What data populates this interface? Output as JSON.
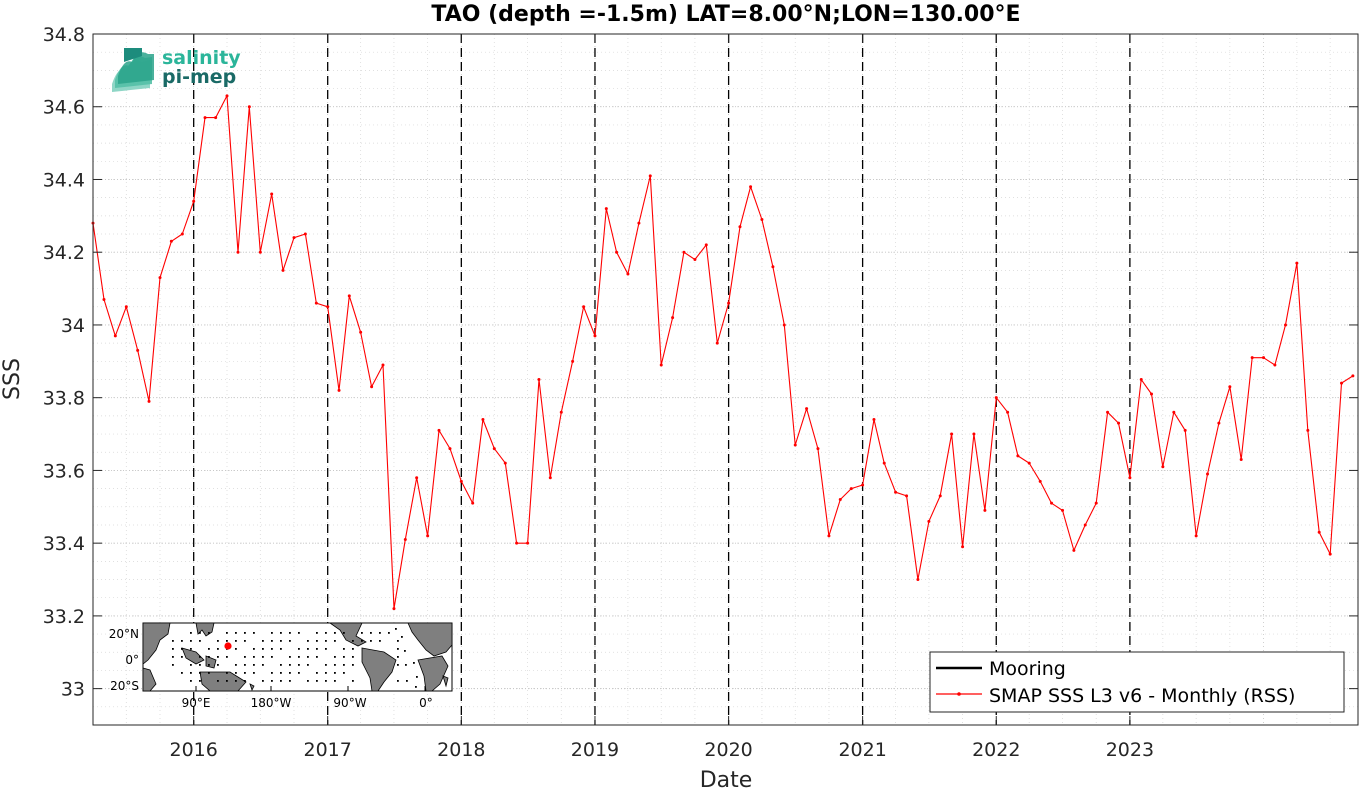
{
  "chart_data": {
    "type": "line",
    "title": "TAO (depth =-1.5m) LAT=8.00°N;LON=130.00°E",
    "xlabel": "Date",
    "ylabel": "SSS",
    "xlim": [
      "2015-04-01",
      "2024-09-15"
    ],
    "ylim": [
      32.9,
      34.8
    ],
    "y_ticks": [
      "33",
      "33.2",
      "33.4",
      "33.6",
      "33.8",
      "34",
      "34.2",
      "34.4",
      "34.6",
      "34.8"
    ],
    "x_ticks": [
      "2016",
      "2017",
      "2018",
      "2019",
      "2020",
      "2021",
      "2022",
      "2023"
    ],
    "grid": true,
    "year_boundary_lines": [
      "2016-01-01",
      "2017-01-01",
      "2018-01-01",
      "2019-01-01",
      "2020-01-01",
      "2021-01-01",
      "2022-01-01",
      "2023-01-01"
    ],
    "legend_placement": "bottom-right",
    "series": [
      {
        "name": "Mooring",
        "color": "#000000",
        "values": []
      },
      {
        "name": "SMAP SSS L3 v6 - Monthly (RSS)",
        "color": "#ff0000",
        "points": [
          [
            "2015-04-01",
            34.28
          ],
          [
            "2015-05-01",
            34.07
          ],
          [
            "2015-06-01",
            33.97
          ],
          [
            "2015-07-01",
            34.05
          ],
          [
            "2015-08-01",
            33.93
          ],
          [
            "2015-09-01",
            33.79
          ],
          [
            "2015-10-01",
            34.13
          ],
          [
            "2015-11-01",
            34.23
          ],
          [
            "2015-12-01",
            34.25
          ],
          [
            "2016-01-01",
            34.34
          ],
          [
            "2016-02-01",
            34.57
          ],
          [
            "2016-03-01",
            34.57
          ],
          [
            "2016-04-01",
            34.63
          ],
          [
            "2016-05-01",
            34.2
          ],
          [
            "2016-06-01",
            34.6
          ],
          [
            "2016-07-01",
            34.2
          ],
          [
            "2016-08-01",
            34.36
          ],
          [
            "2016-09-01",
            34.15
          ],
          [
            "2016-10-01",
            34.24
          ],
          [
            "2016-11-01",
            34.25
          ],
          [
            "2016-12-01",
            34.06
          ],
          [
            "2017-01-01",
            34.05
          ],
          [
            "2017-02-01",
            33.82
          ],
          [
            "2017-03-01",
            34.08
          ],
          [
            "2017-04-01",
            33.98
          ],
          [
            "2017-05-01",
            33.83
          ],
          [
            "2017-06-01",
            33.89
          ],
          [
            "2017-07-01",
            33.22
          ],
          [
            "2017-08-01",
            33.41
          ],
          [
            "2017-09-01",
            33.58
          ],
          [
            "2017-10-01",
            33.42
          ],
          [
            "2017-11-01",
            33.71
          ],
          [
            "2017-12-01",
            33.66
          ],
          [
            "2018-01-01",
            33.57
          ],
          [
            "2018-02-01",
            33.51
          ],
          [
            "2018-03-01",
            33.74
          ],
          [
            "2018-04-01",
            33.66
          ],
          [
            "2018-05-01",
            33.62
          ],
          [
            "2018-06-01",
            33.4
          ],
          [
            "2018-07-01",
            33.4
          ],
          [
            "2018-08-01",
            33.85
          ],
          [
            "2018-09-01",
            33.58
          ],
          [
            "2018-10-01",
            33.76
          ],
          [
            "2018-11-01",
            33.9
          ],
          [
            "2018-12-01",
            34.05
          ],
          [
            "2019-01-01",
            33.97
          ],
          [
            "2019-02-01",
            34.32
          ],
          [
            "2019-03-01",
            34.2
          ],
          [
            "2019-04-01",
            34.14
          ],
          [
            "2019-05-01",
            34.28
          ],
          [
            "2019-06-01",
            34.41
          ],
          [
            "2019-07-01",
            33.89
          ],
          [
            "2019-08-01",
            34.02
          ],
          [
            "2019-09-01",
            34.2
          ],
          [
            "2019-10-01",
            34.18
          ],
          [
            "2019-11-01",
            34.22
          ],
          [
            "2019-12-01",
            33.95
          ],
          [
            "2020-01-01",
            34.06
          ],
          [
            "2020-02-01",
            34.27
          ],
          [
            "2020-03-01",
            34.38
          ],
          [
            "2020-04-01",
            34.29
          ],
          [
            "2020-05-01",
            34.16
          ],
          [
            "2020-06-01",
            34.0
          ],
          [
            "2020-07-01",
            33.67
          ],
          [
            "2020-08-01",
            33.77
          ],
          [
            "2020-09-01",
            33.66
          ],
          [
            "2020-10-01",
            33.42
          ],
          [
            "2020-11-01",
            33.52
          ],
          [
            "2020-12-01",
            33.55
          ],
          [
            "2021-01-01",
            33.56
          ],
          [
            "2021-02-01",
            33.74
          ],
          [
            "2021-03-01",
            33.62
          ],
          [
            "2021-04-01",
            33.54
          ],
          [
            "2021-05-01",
            33.53
          ],
          [
            "2021-06-01",
            33.3
          ],
          [
            "2021-07-01",
            33.46
          ],
          [
            "2021-08-01",
            33.53
          ],
          [
            "2021-09-01",
            33.7
          ],
          [
            "2021-10-01",
            33.39
          ],
          [
            "2021-11-01",
            33.7
          ],
          [
            "2021-12-01",
            33.49
          ],
          [
            "2022-01-01",
            33.8
          ],
          [
            "2022-02-01",
            33.76
          ],
          [
            "2022-03-01",
            33.64
          ],
          [
            "2022-04-01",
            33.62
          ],
          [
            "2022-05-01",
            33.57
          ],
          [
            "2022-06-01",
            33.51
          ],
          [
            "2022-07-01",
            33.49
          ],
          [
            "2022-08-01",
            33.38
          ],
          [
            "2022-09-01",
            33.45
          ],
          [
            "2022-10-01",
            33.51
          ],
          [
            "2022-11-01",
            33.76
          ],
          [
            "2022-12-01",
            33.73
          ],
          [
            "2023-01-01",
            33.58
          ],
          [
            "2023-02-01",
            33.85
          ],
          [
            "2023-03-01",
            33.81
          ],
          [
            "2023-04-01",
            33.61
          ],
          [
            "2023-05-01",
            33.76
          ],
          [
            "2023-06-01",
            33.71
          ],
          [
            "2023-07-01",
            33.42
          ],
          [
            "2023-08-01",
            33.59
          ],
          [
            "2023-09-01",
            33.73
          ],
          [
            "2023-10-01",
            33.83
          ],
          [
            "2023-11-01",
            33.63
          ],
          [
            "2023-12-01",
            33.91
          ],
          [
            "2024-01-01",
            33.91
          ],
          [
            "2024-02-01",
            33.89
          ],
          [
            "2024-03-01",
            34.0
          ],
          [
            "2024-04-01",
            34.17
          ],
          [
            "2024-05-01",
            33.71
          ],
          [
            "2024-06-01",
            33.43
          ],
          [
            "2024-07-01",
            33.37
          ],
          [
            "2024-08-01",
            33.84
          ],
          [
            "2024-09-01",
            33.86
          ]
        ]
      }
    ]
  },
  "logo": {
    "line1": "salinity",
    "line2": "pi-mep",
    "color1": "#2bb59a",
    "color2": "#1a6a66"
  },
  "inset_map": {
    "lat_labels": [
      "20°N",
      "0°",
      "20°S"
    ],
    "lon_labels": [
      "90°E",
      "180°W",
      "90°W",
      "0°"
    ],
    "station_marker_color": "#ff0000"
  }
}
